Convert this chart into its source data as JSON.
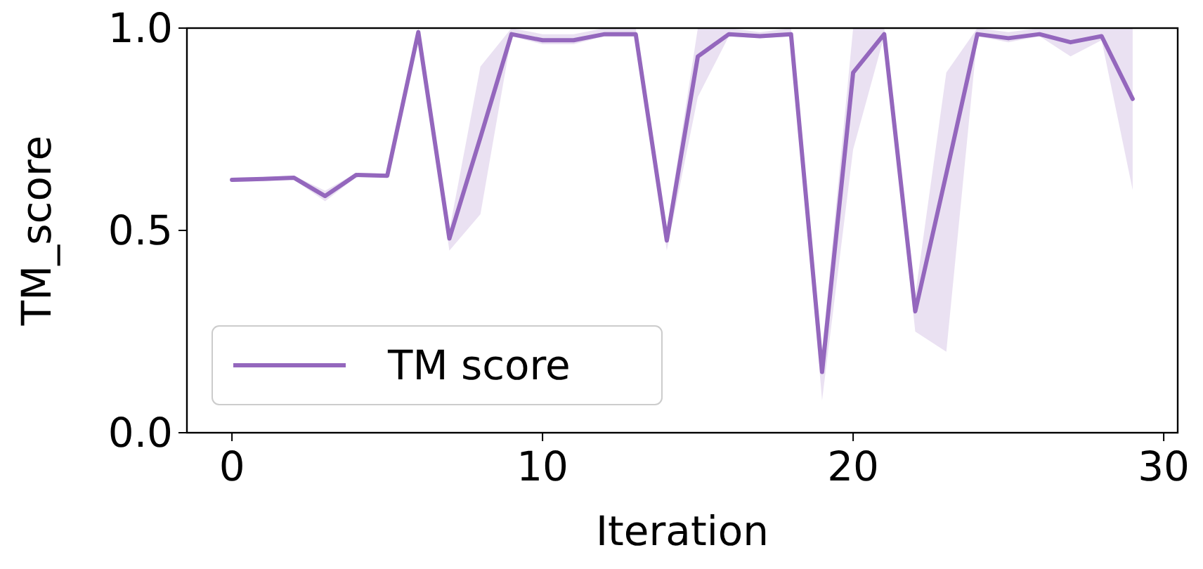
{
  "chart_data": {
    "type": "line",
    "xlabel": "Iteration",
    "ylabel": "TM_score",
    "x": [
      0,
      1,
      2,
      3,
      4,
      5,
      6,
      7,
      8,
      9,
      10,
      11,
      12,
      13,
      14,
      15,
      16,
      17,
      18,
      19,
      20,
      21,
      22,
      23,
      24,
      25,
      26,
      27,
      28,
      29
    ],
    "series": [
      {
        "name": "TM score",
        "color": "#9467bd",
        "values": [
          0.625,
          0.627,
          0.63,
          0.585,
          0.637,
          0.635,
          0.99,
          0.48,
          0.73,
          0.985,
          0.97,
          0.97,
          0.985,
          0.985,
          0.475,
          0.93,
          0.985,
          0.98,
          0.985,
          0.15,
          0.89,
          0.985,
          0.3,
          0.64,
          0.985,
          0.975,
          0.985,
          0.965,
          0.98,
          0.825
        ],
        "lower": [
          0.62,
          0.622,
          0.625,
          0.572,
          0.632,
          0.63,
          0.985,
          0.45,
          0.54,
          0.98,
          0.96,
          0.96,
          0.98,
          0.98,
          0.45,
          0.83,
          0.98,
          0.975,
          0.98,
          0.08,
          0.7,
          0.98,
          0.25,
          0.2,
          0.98,
          0.965,
          0.98,
          0.93,
          0.97,
          0.6
        ],
        "upper": [
          0.63,
          0.632,
          0.635,
          0.598,
          0.642,
          0.64,
          1,
          0.5,
          0.905,
          1,
          0.985,
          0.985,
          1,
          1,
          0.5,
          1,
          1,
          0.99,
          1,
          0.2,
          1,
          1,
          0.34,
          0.89,
          1,
          0.99,
          1,
          1,
          1,
          1
        ]
      }
    ],
    "xlim": [
      -1.45,
      30.45
    ],
    "ylim": [
      0,
      1
    ],
    "xticks": [
      0,
      10,
      20,
      30
    ],
    "yticks": [
      {
        "value": 0,
        "label": "0.0"
      },
      {
        "value": 0.5,
        "label": "0.5"
      },
      {
        "value": 1,
        "label": "1.0"
      }
    ],
    "legend": "bottom left",
    "grid": false
  }
}
